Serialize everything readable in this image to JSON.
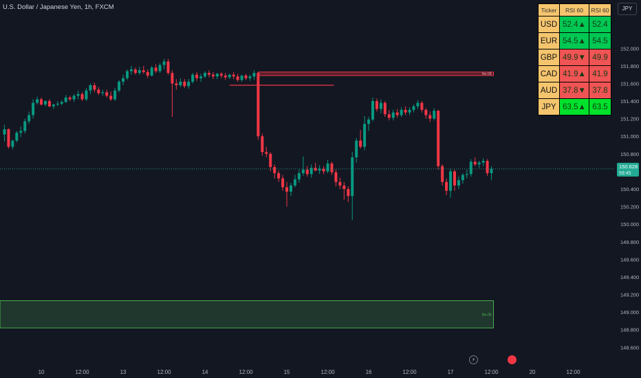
{
  "title": "U.S. Dollar / Japanese Yen, 1h, FXCM",
  "currency_button": "JPY",
  "price_badge": {
    "price": "150.628",
    "countdown": "59:45"
  },
  "zone_labels": {
    "supply": "8w-08",
    "demand": "8w-08"
  },
  "rsi_table": {
    "headers": [
      "Ticker",
      "RSI 60",
      "RSI 60"
    ],
    "rows": [
      {
        "ticker": "USD",
        "value": "52.4",
        "arrow": "▲",
        "color": "#00c853"
      },
      {
        "ticker": "EUR",
        "value": "54.5",
        "arrow": "▲",
        "color": "#00c853"
      },
      {
        "ticker": "GBP",
        "value": "49.9",
        "arrow": "▼",
        "color": "#f05454"
      },
      {
        "ticker": "CAD",
        "value": "41.9",
        "arrow": "▲",
        "color": "#f05454"
      },
      {
        "ticker": "AUD",
        "value": "37.8",
        "arrow": "▼",
        "color": "#f05454"
      },
      {
        "ticker": "JPY",
        "value": "63.5",
        "arrow": "▲",
        "color": "#00e12b"
      }
    ]
  },
  "colors": {
    "up": "#089981",
    "down": "#f23645",
    "background": "#131722",
    "supply_zone": "#f23645",
    "demand_zone": "#4caf50",
    "price_line": "#22ab94"
  },
  "bottom_icons": [
    "lightning-icon",
    "record-icon"
  ],
  "chart_data": {
    "type": "candlestick",
    "title": "U.S. Dollar / Japanese Yen, 1h, FXCM",
    "y_ticks": [
      "152.000",
      "151.800",
      "151.600",
      "151.400",
      "151.200",
      "151.000",
      "150.800",
      "150.600",
      "150.400",
      "150.200",
      "150.000",
      "149.800",
      "149.600",
      "149.400",
      "149.200",
      "149.000",
      "148.800",
      "148.600"
    ],
    "ylim": [
      148.54,
      152.26
    ],
    "x_ticks": [
      {
        "label": "10",
        "bar": 9.5
      },
      {
        "label": "12:00",
        "bar": 19.5
      },
      {
        "label": "13",
        "bar": 29.5
      },
      {
        "label": "12:00",
        "bar": 39.5
      },
      {
        "label": "14",
        "bar": 49.5
      },
      {
        "label": "12:00",
        "bar": 59.5
      },
      {
        "label": "15",
        "bar": 69.5
      },
      {
        "label": "12:00",
        "bar": 79.5
      },
      {
        "label": "16",
        "bar": 89.5
      },
      {
        "label": "12:00",
        "bar": 99.5
      },
      {
        "label": "17",
        "bar": 109.5
      },
      {
        "label": "12:00",
        "bar": 119.5
      },
      {
        "label": "20",
        "bar": 129.5
      },
      {
        "label": "12:00",
        "bar": 139.5
      }
    ],
    "last_price": 150.628,
    "supply_zone": {
      "from_bar": 62.5,
      "to_bar": 120.0,
      "low": 151.69,
      "high": 151.73
    },
    "demand_zone": {
      "from_bar": 0.0,
      "to_bar": 120.0,
      "low": 148.82,
      "high": 149.13
    },
    "swing_line": {
      "from_bar": 55.5,
      "to_bar": 81.0,
      "price": 151.58
    },
    "ohlc": [
      [
        151.02,
        151.13,
        150.94,
        151.08
      ],
      [
        151.08,
        151.09,
        150.86,
        150.88
      ],
      [
        150.88,
        150.96,
        150.85,
        150.95
      ],
      [
        150.95,
        151.06,
        150.93,
        151.04
      ],
      [
        151.04,
        151.11,
        150.99,
        151.06
      ],
      [
        151.06,
        151.2,
        151.03,
        151.17
      ],
      [
        151.17,
        151.28,
        151.14,
        151.24
      ],
      [
        151.24,
        151.42,
        151.2,
        151.38
      ],
      [
        151.38,
        151.45,
        151.36,
        151.42
      ],
      [
        151.42,
        151.44,
        151.35,
        151.36
      ],
      [
        151.36,
        151.41,
        151.34,
        151.4
      ],
      [
        151.4,
        151.42,
        151.33,
        151.34
      ],
      [
        151.34,
        151.37,
        151.31,
        151.36
      ],
      [
        151.36,
        151.4,
        151.34,
        151.37
      ],
      [
        151.37,
        151.41,
        151.35,
        151.39
      ],
      [
        151.39,
        151.47,
        151.38,
        151.44
      ],
      [
        151.44,
        151.46,
        151.4,
        151.42
      ],
      [
        151.42,
        151.48,
        151.39,
        151.46
      ],
      [
        151.46,
        151.52,
        151.42,
        151.48
      ],
      [
        151.48,
        151.5,
        151.4,
        151.42
      ],
      [
        151.42,
        151.55,
        151.4,
        151.52
      ],
      [
        151.52,
        151.6,
        151.48,
        151.58
      ],
      [
        151.58,
        151.61,
        151.5,
        151.53
      ],
      [
        151.53,
        151.56,
        151.47,
        151.49
      ],
      [
        151.49,
        151.53,
        151.46,
        151.5
      ],
      [
        151.5,
        151.53,
        151.44,
        151.46
      ],
      [
        151.46,
        151.51,
        151.4,
        151.42
      ],
      [
        151.42,
        151.55,
        151.4,
        151.52
      ],
      [
        151.52,
        151.64,
        151.5,
        151.62
      ],
      [
        151.62,
        151.7,
        151.58,
        151.66
      ],
      [
        151.66,
        151.76,
        151.64,
        151.74
      ],
      [
        151.74,
        151.8,
        151.7,
        151.76
      ],
      [
        151.76,
        151.78,
        151.7,
        151.72
      ],
      [
        151.72,
        151.79,
        151.7,
        151.75
      ],
      [
        151.75,
        151.8,
        151.71,
        151.73
      ],
      [
        151.73,
        151.76,
        151.66,
        151.69
      ],
      [
        151.69,
        151.8,
        151.68,
        151.78
      ],
      [
        151.78,
        151.82,
        151.72,
        151.74
      ],
      [
        151.74,
        151.83,
        151.72,
        151.81
      ],
      [
        151.81,
        151.88,
        151.76,
        151.85
      ],
      [
        151.85,
        151.88,
        151.7,
        151.72
      ],
      [
        151.72,
        151.75,
        151.22,
        151.6
      ],
      [
        151.6,
        151.65,
        151.53,
        151.58
      ],
      [
        151.58,
        151.66,
        151.56,
        151.62
      ],
      [
        151.62,
        151.65,
        151.55,
        151.57
      ],
      [
        151.57,
        151.65,
        151.54,
        151.62
      ],
      [
        151.62,
        151.72,
        151.6,
        151.7
      ],
      [
        151.7,
        151.73,
        151.63,
        151.66
      ],
      [
        151.66,
        151.71,
        151.62,
        151.68
      ],
      [
        151.68,
        151.74,
        151.66,
        151.72
      ],
      [
        151.72,
        151.75,
        151.67,
        151.7
      ],
      [
        151.7,
        151.73,
        151.65,
        151.68
      ],
      [
        151.68,
        151.72,
        151.65,
        151.71
      ],
      [
        151.71,
        151.73,
        151.66,
        151.69
      ],
      [
        151.69,
        151.72,
        151.64,
        151.67
      ],
      [
        151.67,
        151.71,
        151.65,
        151.7
      ],
      [
        151.7,
        151.73,
        151.65,
        151.68
      ],
      [
        151.68,
        151.71,
        151.62,
        151.64
      ],
      [
        151.64,
        151.7,
        151.62,
        151.69
      ],
      [
        151.69,
        151.71,
        151.64,
        151.66
      ],
      [
        151.66,
        151.7,
        151.63,
        151.68
      ],
      [
        151.68,
        151.75,
        151.64,
        151.72
      ],
      [
        151.72,
        151.73,
        150.96,
        151.0
      ],
      [
        151.0,
        151.03,
        150.78,
        150.82
      ],
      [
        150.82,
        150.88,
        150.76,
        150.8
      ],
      [
        150.8,
        150.82,
        150.6,
        150.65
      ],
      [
        150.65,
        150.68,
        150.52,
        150.58
      ],
      [
        150.58,
        150.61,
        150.48,
        150.52
      ],
      [
        150.52,
        150.56,
        150.38,
        150.42
      ],
      [
        150.42,
        150.48,
        150.2,
        150.37
      ],
      [
        150.37,
        150.47,
        150.32,
        150.44
      ],
      [
        150.44,
        150.56,
        150.42,
        150.51
      ],
      [
        150.51,
        150.62,
        150.47,
        150.58
      ],
      [
        150.58,
        150.77,
        150.55,
        150.62
      ],
      [
        150.62,
        150.66,
        150.54,
        150.57
      ],
      [
        150.57,
        150.68,
        150.53,
        150.64
      ],
      [
        150.64,
        150.7,
        150.6,
        150.61
      ],
      [
        150.61,
        150.67,
        150.57,
        150.63
      ],
      [
        150.63,
        150.66,
        150.57,
        150.6
      ],
      [
        150.6,
        150.73,
        150.58,
        150.69
      ],
      [
        150.69,
        150.71,
        150.56,
        150.59
      ],
      [
        150.59,
        150.62,
        150.43,
        150.48
      ],
      [
        150.48,
        150.53,
        150.4,
        150.44
      ],
      [
        150.44,
        150.48,
        150.28,
        150.4
      ],
      [
        150.4,
        150.43,
        150.25,
        150.32
      ],
      [
        150.32,
        150.82,
        150.05,
        150.76
      ],
      [
        150.76,
        150.98,
        150.7,
        150.95
      ],
      [
        150.95,
        151.07,
        150.86,
        150.88
      ],
      [
        150.88,
        151.23,
        150.84,
        151.14
      ],
      [
        151.14,
        151.22,
        151.06,
        151.19
      ],
      [
        151.19,
        151.44,
        151.17,
        151.4
      ],
      [
        151.4,
        151.43,
        151.28,
        151.31
      ],
      [
        151.31,
        151.42,
        151.26,
        151.38
      ],
      [
        151.38,
        151.4,
        151.22,
        151.25
      ],
      [
        151.25,
        151.3,
        151.18,
        151.21
      ],
      [
        151.21,
        151.3,
        151.18,
        151.27
      ],
      [
        151.27,
        151.31,
        151.21,
        151.24
      ],
      [
        151.24,
        151.33,
        151.22,
        151.3
      ],
      [
        151.3,
        151.34,
        151.24,
        151.27
      ],
      [
        151.27,
        151.33,
        151.24,
        151.3
      ],
      [
        151.3,
        151.36,
        151.27,
        151.34
      ],
      [
        151.34,
        151.41,
        151.31,
        151.38
      ],
      [
        151.38,
        151.4,
        151.27,
        151.3
      ],
      [
        151.3,
        151.32,
        151.2,
        151.24
      ],
      [
        151.24,
        151.28,
        151.16,
        151.2
      ],
      [
        151.2,
        151.32,
        151.18,
        151.29
      ],
      [
        151.29,
        151.3,
        150.62,
        150.66
      ],
      [
        150.66,
        150.68,
        150.44,
        150.48
      ],
      [
        150.48,
        150.52,
        150.33,
        150.38
      ],
      [
        150.38,
        150.63,
        150.3,
        150.6
      ],
      [
        150.6,
        150.62,
        150.38,
        150.44
      ],
      [
        150.44,
        150.54,
        150.4,
        150.5
      ],
      [
        150.5,
        150.58,
        150.46,
        150.56
      ],
      [
        150.56,
        150.62,
        150.52,
        150.57
      ],
      [
        150.57,
        150.74,
        150.54,
        150.71
      ],
      [
        150.71,
        150.76,
        150.66,
        150.68
      ],
      [
        150.68,
        150.72,
        150.64,
        150.7
      ],
      [
        150.7,
        150.75,
        150.66,
        150.72
      ],
      [
        150.72,
        150.74,
        150.55,
        150.58
      ],
      [
        150.58,
        150.66,
        150.5,
        150.63
      ]
    ]
  }
}
